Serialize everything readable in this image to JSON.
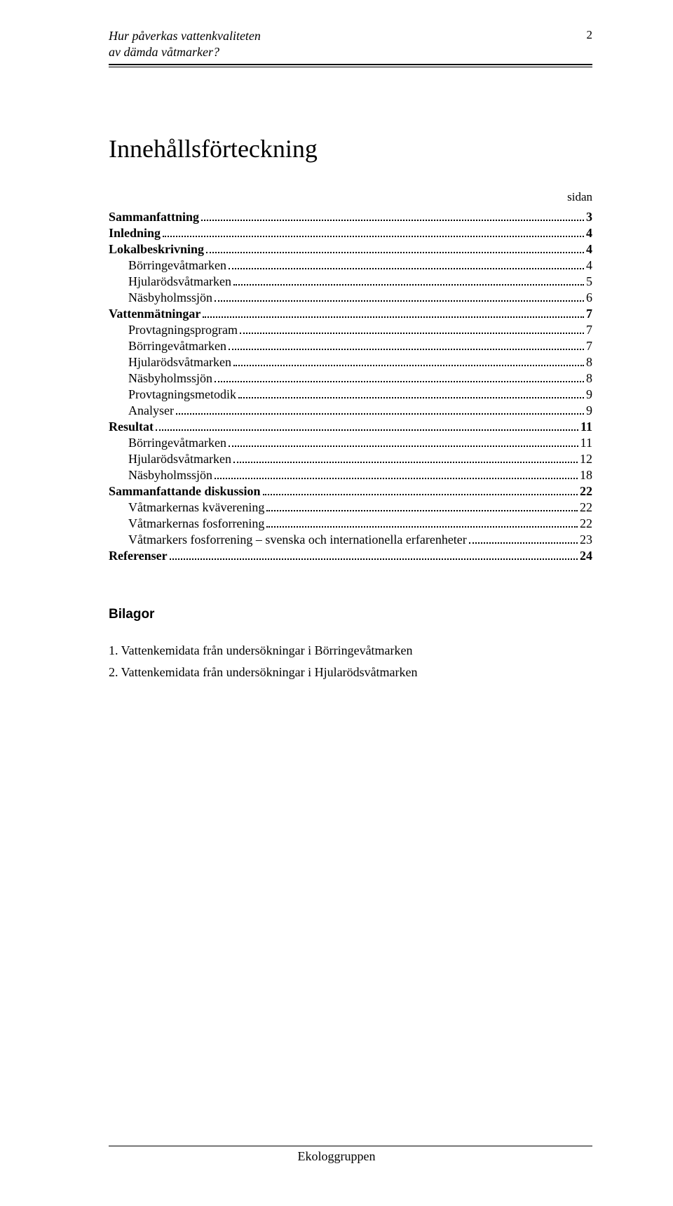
{
  "header": {
    "title_line1": "Hur påverkas vattenkvaliteten",
    "title_line2": "av dämda våtmarker?",
    "page_number": "2"
  },
  "main_title": "Innehållsförteckning",
  "sidan_label": "sidan",
  "toc": [
    {
      "level": 1,
      "label": "Sammanfattning",
      "page": "3"
    },
    {
      "level": 1,
      "label": "Inledning",
      "page": "4"
    },
    {
      "level": 1,
      "label": "Lokalbeskrivning",
      "page": "4"
    },
    {
      "level": 2,
      "label": "Börringevåtmarken",
      "page": "4"
    },
    {
      "level": 2,
      "label": "Hjularödsvåtmarken",
      "page": "5"
    },
    {
      "level": 2,
      "label": "Näsbyholmssjön",
      "page": "6"
    },
    {
      "level": 1,
      "label": "Vattenmätningar",
      "page": "7"
    },
    {
      "level": 2,
      "label": "Provtagningsprogram",
      "page": "7"
    },
    {
      "level": 2,
      "label": "Börringevåtmarken",
      "page": "7"
    },
    {
      "level": 2,
      "label": "Hjularödsvåtmarken",
      "page": "8"
    },
    {
      "level": 2,
      "label": "Näsbyholmssjön",
      "page": "8"
    },
    {
      "level": 2,
      "label": "Provtagningsmetodik",
      "page": "9"
    },
    {
      "level": 2,
      "label": "Analyser",
      "page": "9"
    },
    {
      "level": 1,
      "label": "Resultat",
      "page": "11"
    },
    {
      "level": 2,
      "label": "Börringevåtmarken",
      "page": "11"
    },
    {
      "level": 2,
      "label": "Hjularödsvåtmarken",
      "page": "12"
    },
    {
      "level": 2,
      "label": "Näsbyholmssjön",
      "page": "18"
    },
    {
      "level": 1,
      "label": "Sammanfattande diskussion",
      "page": "22"
    },
    {
      "level": 2,
      "label": "Våtmarkernas kväverening",
      "page": "22"
    },
    {
      "level": 2,
      "label": "Våtmarkernas fosforrening",
      "page": "22"
    },
    {
      "level": 2,
      "label": "Våtmarkers fosforrening – svenska och internationella erfarenheter",
      "page": "23"
    },
    {
      "level": 1,
      "label": "Referenser",
      "page": "24"
    }
  ],
  "bilagor": {
    "title": "Bilagor",
    "items": [
      "1. Vattenkemidata från undersökningar i Börringevåtmarken",
      "2. Vattenkemidata från undersökningar i Hjularödsvåtmarken"
    ]
  },
  "footer": "Ekologgruppen"
}
